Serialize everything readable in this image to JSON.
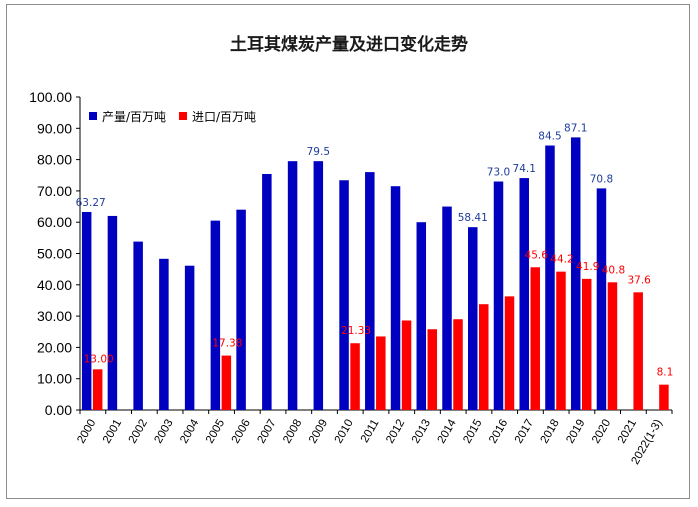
{
  "chart_data": {
    "type": "bar",
    "title": "土耳其煤炭产量及进口变化走势",
    "xlabel": "",
    "ylabel": "",
    "ylim": [
      0,
      100
    ],
    "yticks": [
      "0.00",
      "10.00",
      "20.00",
      "30.00",
      "40.00",
      "50.00",
      "60.00",
      "70.00",
      "80.00",
      "90.00",
      "100.00"
    ],
    "grid": false,
    "legend_position": "top-left",
    "categories": [
      "2000",
      "2001",
      "2002",
      "2003",
      "2004",
      "2005",
      "2006",
      "2007",
      "2008",
      "2009",
      "2010",
      "2011",
      "2012",
      "2013",
      "2014",
      "2015",
      "2016",
      "2017",
      "2018",
      "2019",
      "2020",
      "2021",
      "2022(1-3)"
    ],
    "series": [
      {
        "name": "产量/百万吨",
        "color": "#0000c0",
        "label_color": "#1f3c9c",
        "values": [
          63.27,
          62.0,
          53.8,
          48.3,
          46.1,
          60.5,
          64.0,
          75.4,
          79.5,
          79.5,
          73.4,
          76.0,
          71.5,
          60.0,
          65.0,
          58.41,
          73.0,
          74.1,
          84.5,
          87.1,
          70.8,
          null,
          null
        ],
        "labels": [
          "63.27",
          "",
          "",
          "",
          "",
          "",
          "",
          "",
          "",
          "79.5",
          "",
          "",
          "",
          "",
          "",
          "58.41",
          "73.0",
          "74.1",
          "84.5",
          "87.1",
          "70.8",
          "",
          ""
        ]
      },
      {
        "name": "进口/百万吨",
        "color": "#ff0000",
        "label_color": "#ff0000",
        "values": [
          13.0,
          null,
          null,
          null,
          null,
          17.38,
          null,
          null,
          null,
          null,
          21.33,
          23.5,
          28.6,
          25.8,
          29.0,
          33.8,
          36.3,
          45.6,
          44.2,
          41.9,
          40.8,
          37.6,
          8.1
        ],
        "labels": [
          "13.00",
          "",
          "",
          "",
          "",
          "17.38",
          "",
          "",
          "",
          "",
          "21.33",
          "",
          "",
          "",
          "",
          "",
          "",
          "45.6",
          "44.2",
          "41.9",
          "40.8",
          "37.6",
          "8.1"
        ]
      }
    ]
  }
}
